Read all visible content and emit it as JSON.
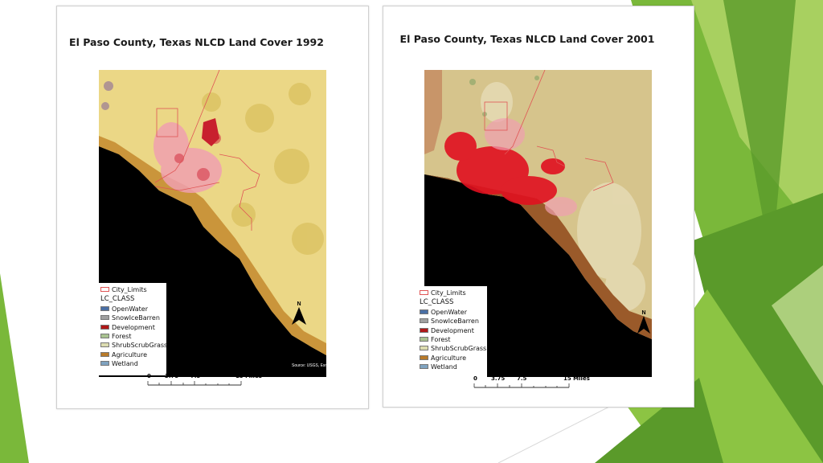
{
  "slide": {
    "colors": {
      "green_dark": "#5a9a2a",
      "green_mid": "#7ab83a",
      "green_light": "#a8d060",
      "green_pale": "#cfe6a0"
    }
  },
  "maps": [
    {
      "id": "1992",
      "title": "El Paso County, Texas NLCD Land Cover 1992",
      "source": "Source: USGS, Esri",
      "legend": {
        "boundary_label": "City_Limits",
        "heading": "LC_CLASS",
        "classes": [
          {
            "label": "OpenWater",
            "color": "#4a6fa5"
          },
          {
            "label": "SnowIceBarren",
            "color": "#a0a0a0"
          },
          {
            "label": "Development",
            "color": "#b01818"
          },
          {
            "label": "Forest",
            "color": "#a9c290"
          },
          {
            "label": "ShrubScrubGrass",
            "color": "#dcdcb0"
          },
          {
            "label": "Agriculture",
            "color": "#b87a2a"
          },
          {
            "label": "Wetland",
            "color": "#7fa3c0"
          }
        ]
      },
      "scale": {
        "labels": [
          "0",
          "3.75",
          "7.5",
          "15 Miles"
        ]
      },
      "north_label": "N"
    },
    {
      "id": "2001",
      "title": "El Paso County, Texas NLCD Land Cover 2001",
      "legend": {
        "boundary_label": "City_Limits",
        "heading": "LC_CLASS",
        "classes": [
          {
            "label": "OpenWater",
            "color": "#4a6fa5"
          },
          {
            "label": "SnowIceBarren",
            "color": "#a0a0a0"
          },
          {
            "label": "Development",
            "color": "#b01818"
          },
          {
            "label": "Forest",
            "color": "#a9c290"
          },
          {
            "label": "ShrubScrubGrass",
            "color": "#dcdcb0"
          },
          {
            "label": "Agriculture",
            "color": "#b87a2a"
          },
          {
            "label": "Wetland",
            "color": "#7fa3c0"
          }
        ]
      },
      "scale": {
        "labels": [
          "0",
          "3.75",
          "7.5",
          "15 Miles"
        ]
      },
      "north_label": "N"
    }
  ]
}
